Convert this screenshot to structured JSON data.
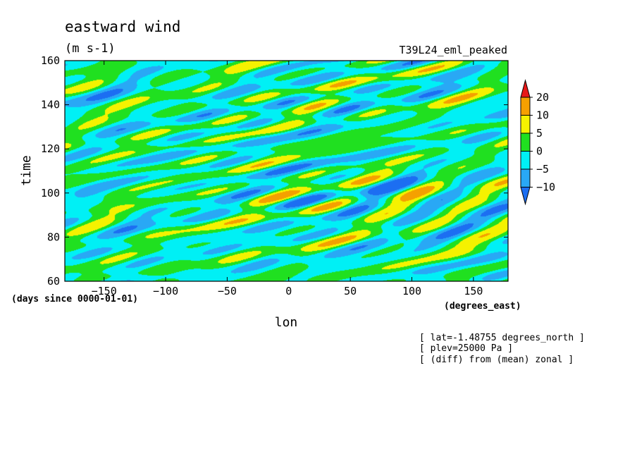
{
  "chart_data": {
    "type": "heatmap",
    "title": "eastward wind",
    "subtitle": "(m s-1)",
    "run_label": "T39L24_eml_peaked",
    "xlabel": "lon",
    "xunits": "(degrees_east)",
    "ylabel": "time",
    "yunits": "(days since 0000-01-01)",
    "xlim": [
      -181.875,
      178.125
    ],
    "ylim": [
      60,
      160
    ],
    "x_ticks": [
      -150,
      -100,
      -50,
      0,
      50,
      100,
      150
    ],
    "y_ticks": [
      60,
      80,
      100,
      120,
      140,
      160
    ],
    "contour_levels": [
      -10,
      -5,
      0,
      5,
      10,
      20
    ],
    "colorbar": {
      "labels": [
        "20",
        "10",
        "5",
        "0",
        "-5",
        "-10"
      ],
      "colors": [
        "#1c6ef2",
        "#29a8f5",
        "#00f0f5",
        "#20e020",
        "#f5f200",
        "#f5a000",
        "#e81818"
      ],
      "over_color": "#e81818",
      "under_color": "#1c6ef2"
    },
    "field_notes": [
      "[ lat=-1.48755 degrees_north ]",
      "[ plev=25000 Pa ]",
      "[ (diff) from (mean) zonal ]"
    ],
    "grid": false,
    "legend_placement": "right"
  }
}
